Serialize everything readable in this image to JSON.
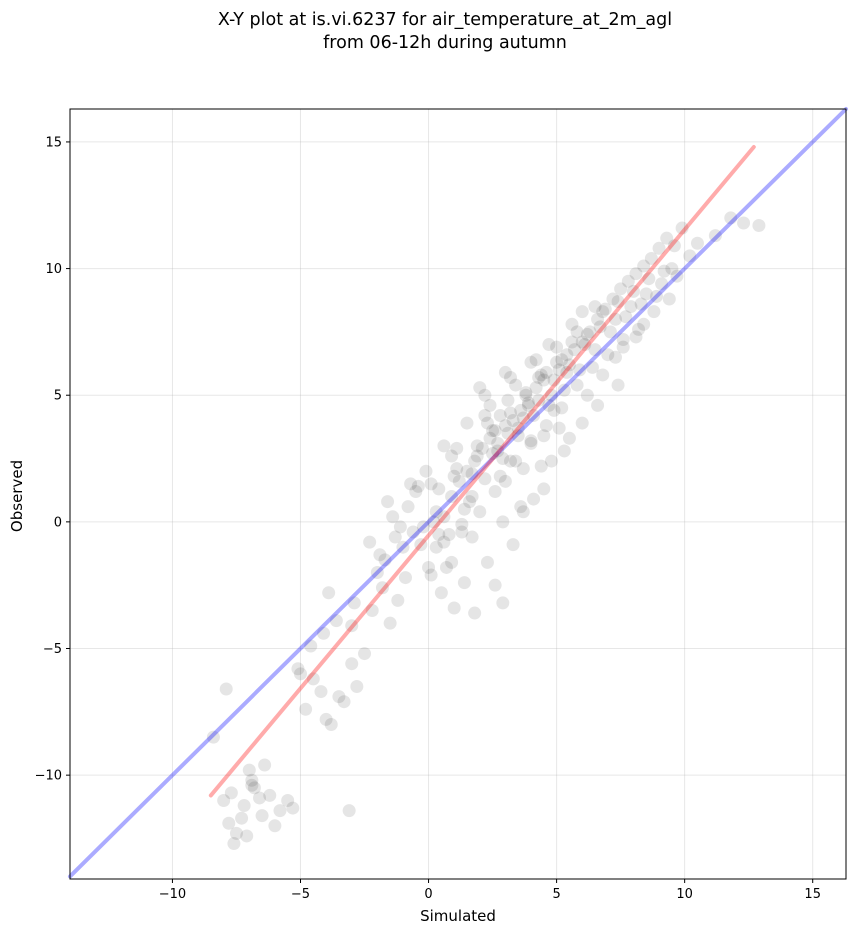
{
  "chart_data": {
    "type": "scatter",
    "title_line1": "X-Y plot at is.vi.6237 for air_temperature_at_2m_agl",
    "title_line2": "from 06-12h during autumn",
    "xlabel": "Simulated",
    "ylabel": "Observed",
    "xlim": [
      -14.0,
      16.3
    ],
    "ylim": [
      -14.1,
      16.3
    ],
    "xticks": [
      -10,
      -5,
      0,
      5,
      10,
      15
    ],
    "yticks": [
      -10,
      -5,
      0,
      5,
      10,
      15
    ],
    "xtick_labels": [
      "−10",
      "−5",
      "0",
      "5",
      "10",
      "15"
    ],
    "ytick_labels": [
      "−10",
      "−5",
      "0",
      "5",
      "10",
      "15"
    ],
    "grid": true,
    "point_color": "#000000",
    "point_alpha": 0.1,
    "lines": [
      {
        "color": "#0000ff",
        "alpha": 0.33,
        "x": [
          -14.0,
          16.3
        ],
        "y": [
          -14.0,
          16.3
        ]
      },
      {
        "color": "#ff0000",
        "alpha": 0.33,
        "x": [
          -8.5,
          12.7
        ],
        "y": [
          -10.8,
          14.8
        ]
      }
    ],
    "points": {
      "x": [
        -7.8,
        -7.5,
        -7.2,
        -6.9,
        -6.5,
        -6.2,
        -5.8,
        -5.5,
        -7.0,
        -6.8,
        -6.0,
        -7.6,
        -5.3,
        -6.6,
        -7.3,
        -8.0,
        -7.1,
        -6.4,
        -6.9,
        -7.7,
        -3.1,
        -7.9,
        -8.4,
        -4.0,
        -3.5,
        -3.0,
        -4.5,
        -4.8,
        -5.1,
        -4.2,
        -3.8,
        -3.3,
        -2.8,
        -2.5,
        -4.6,
        -5.0,
        -3.6,
        -4.1,
        -2.9,
        -3.9,
        -3.0,
        -2.2,
        -1.8,
        -1.5,
        -1.2,
        -0.9,
        -2.0,
        -1.7,
        -1.0,
        -0.6,
        -1.4,
        -2.3,
        -0.8,
        -0.5,
        -1.1,
        -0.3,
        -1.6,
        -1.9,
        -0.7,
        -1.3,
        0.0,
        0.3,
        0.6,
        0.9,
        1.2,
        1.5,
        1.8,
        2.1,
        2.4,
        2.7,
        3.0,
        3.3,
        3.6,
        3.9,
        4.2,
        4.5,
        4.8,
        5.1,
        5.4,
        5.7,
        6.0,
        6.3,
        6.6,
        6.9,
        7.2,
        7.5,
        7.8,
        8.1,
        8.4,
        8.7,
        9.0,
        9.3,
        9.6,
        9.9,
        10.2,
        10.5,
        11.2,
        11.8,
        12.3,
        12.9,
        0.4,
        0.8,
        1.1,
        1.6,
        1.9,
        2.2,
        2.6,
        2.9,
        3.2,
        3.5,
        3.8,
        4.1,
        4.4,
        4.7,
        5.0,
        5.3,
        5.6,
        5.9,
        6.2,
        6.5,
        6.8,
        7.1,
        7.4,
        7.7,
        8.0,
        8.3,
        8.6,
        8.9,
        9.2,
        9.5,
        0.2,
        0.7,
        1.3,
        1.7,
        2.0,
        2.5,
        2.8,
        3.1,
        3.4,
        3.7,
        4.0,
        4.3,
        4.6,
        4.9,
        5.2,
        5.5,
        5.8,
        6.1,
        6.4,
        6.7,
        7.0,
        7.3,
        7.6,
        7.9,
        8.2,
        8.5,
        8.8,
        9.1,
        9.4,
        9.7,
        0.5,
        1.0,
        1.4,
        2.3,
        3.6,
        4.4,
        5.1,
        6.2,
        7.3,
        8.1,
        1.8,
        2.6,
        3.3,
        4.1,
        4.8,
        5.5,
        6.6,
        7.4,
        0.1,
        -0.2,
        0.9,
        1.7,
        2.9,
        3.7,
        4.5,
        5.3,
        6.0,
        6.8,
        7.6,
        8.4,
        -0.4,
        -0.1,
        0.6,
        1.5,
        2.4,
        3.2,
        4.0,
        4.7,
        5.6,
        6.5,
        2.0,
        3.0,
        4.2,
        5.0,
        6.0,
        1.0,
        2.2,
        3.4,
        4.6,
        5.8,
        3.8,
        4.3,
        4.9,
        5.4,
        3.1,
        3.9,
        4.5,
        5.2,
        2.7,
        3.5,
        2.5,
        2.8,
        2.2,
        3.2,
        4.0,
        0.3,
        1.1,
        2.6,
        3.0,
        1.7,
        0.6,
        1.4,
        0.9,
        2.9,
        1.3,
        0.1,
        0.4,
        3.7,
        2.3,
        1.9
      ],
      "y": [
        -11.9,
        -12.3,
        -11.2,
        -10.4,
        -11.6,
        -10.8,
        -11.4,
        -11.0,
        -9.8,
        -10.5,
        -12.0,
        -12.7,
        -11.3,
        -10.9,
        -11.7,
        -11.0,
        -12.4,
        -9.6,
        -10.2,
        -10.7,
        -11.4,
        -6.6,
        -8.5,
        -7.8,
        -6.9,
        -5.6,
        -6.2,
        -7.4,
        -5.8,
        -6.7,
        -8.0,
        -7.1,
        -6.5,
        -5.2,
        -4.9,
        -6.0,
        -3.9,
        -4.4,
        -3.2,
        -2.8,
        -4.1,
        -3.5,
        -2.6,
        -4.0,
        -3.1,
        -2.2,
        -2.0,
        -1.5,
        -1.0,
        -0.4,
        0.2,
        -0.8,
        0.6,
        1.2,
        -0.2,
        -0.9,
        0.8,
        -1.3,
        1.5,
        -0.6,
        -1.8,
        -1.0,
        0.2,
        1.0,
        1.6,
        2.0,
        2.4,
        2.9,
        3.3,
        3.1,
        3.8,
        4.0,
        4.4,
        4.7,
        5.3,
        5.6,
        5.0,
        6.0,
        6.6,
        6.8,
        7.1,
        7.5,
        8.0,
        8.4,
        8.8,
        9.2,
        9.5,
        9.8,
        10.1,
        10.4,
        10.8,
        11.2,
        10.9,
        11.6,
        10.5,
        11.0,
        11.3,
        12.0,
        11.8,
        11.7,
        1.3,
        -0.5,
        2.1,
        0.8,
        3.0,
        1.7,
        3.6,
        2.5,
        4.3,
        3.4,
        5.0,
        4.2,
        5.8,
        4.6,
        6.3,
        5.2,
        7.1,
        6.0,
        7.4,
        6.8,
        8.3,
        7.5,
        8.7,
        8.1,
        9.1,
        8.6,
        9.6,
        8.9,
        9.9,
        10.0,
        0.0,
        -1.8,
        -0.4,
        1.9,
        0.4,
        2.7,
        1.8,
        3.5,
        2.4,
        4.1,
        3.2,
        4.8,
        3.8,
        5.6,
        4.5,
        6.2,
        5.4,
        7.0,
        6.1,
        7.7,
        6.6,
        8.0,
        7.2,
        8.5,
        7.6,
        9.0,
        8.3,
        9.4,
        8.8,
        9.7,
        -2.8,
        -3.4,
        -2.4,
        -1.6,
        0.6,
        2.2,
        3.7,
        5.0,
        6.5,
        7.3,
        -3.6,
        -2.5,
        -0.9,
        0.9,
        2.4,
        3.3,
        4.6,
        5.4,
        -2.1,
        -0.2,
        -1.6,
        -0.6,
        -3.2,
        0.4,
        1.3,
        2.8,
        3.9,
        5.8,
        6.9,
        7.8,
        1.4,
        2.0,
        3.0,
        3.9,
        4.6,
        5.7,
        6.3,
        7.0,
        7.8,
        8.5,
        5.3,
        5.9,
        6.4,
        6.9,
        8.3,
        1.8,
        4.2,
        5.4,
        5.9,
        7.5,
        5.1,
        5.7,
        4.4,
        5.9,
        4.8,
        4.6,
        3.4,
        6.4,
        2.8,
        3.7,
        3.6,
        4.2,
        5.0,
        2.4,
        3.1,
        0.4,
        2.9,
        1.2,
        1.6,
        1.0,
        -0.8,
        0.5,
        2.6,
        0.0,
        -0.1,
        1.5,
        -0.5,
        2.1,
        3.9,
        2.6
      ]
    }
  }
}
